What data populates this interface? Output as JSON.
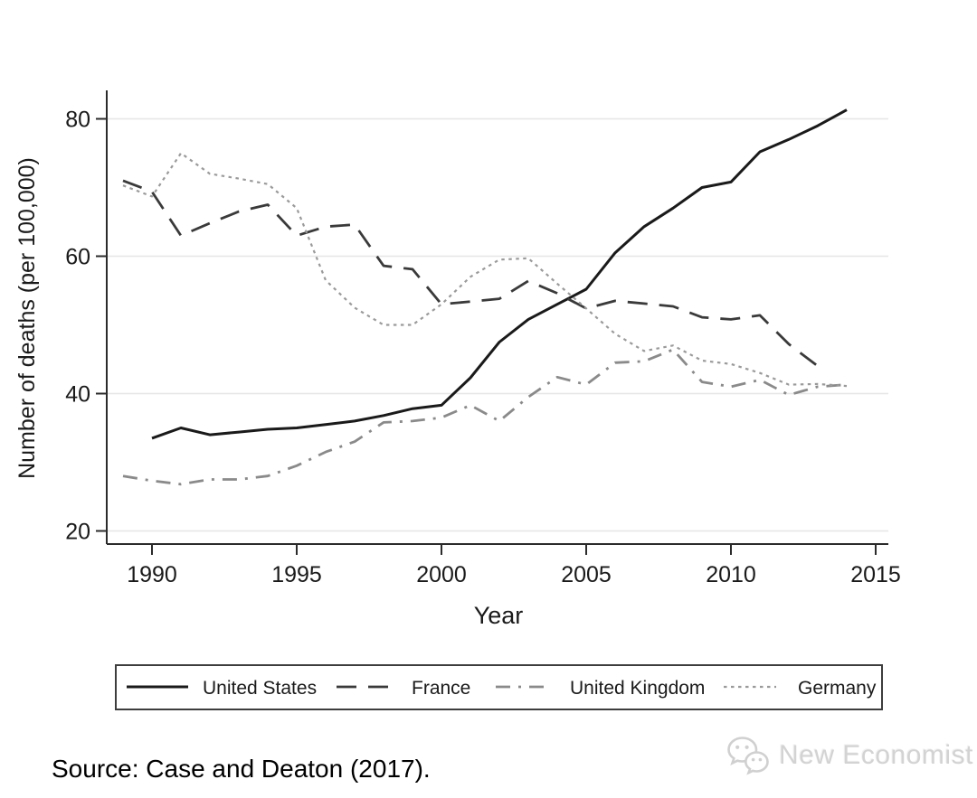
{
  "chart_data": {
    "type": "line",
    "title": "",
    "xlabel": "Year",
    "ylabel": "Number of deaths (per 100,000)",
    "x_ticks": [
      1990,
      1995,
      2000,
      2005,
      2010,
      2015
    ],
    "y_ticks": [
      20,
      40,
      60,
      80
    ],
    "xlim": [
      1988.4,
      2015.6
    ],
    "ylim": [
      18,
      84.5
    ],
    "grid": "horizontal-only",
    "legend_position": "bottom-boxed-row",
    "series": [
      {
        "name": "United States",
        "style": "solid",
        "color": "#1a1a1a",
        "width": 3,
        "dash": "",
        "x": [
          1990,
          1991,
          1992,
          1993,
          1994,
          1995,
          1996,
          1997,
          1998,
          1999,
          2000,
          2001,
          2002,
          2003,
          2004,
          2005,
          2006,
          2007,
          2008,
          2009,
          2010,
          2011,
          2012,
          2013,
          2014
        ],
        "values": [
          33.5,
          35,
          34,
          34.4,
          34.8,
          35,
          35.5,
          36,
          36.8,
          37.8,
          38.3,
          42.3,
          47.5,
          50.8,
          53,
          55.2,
          60.5,
          64.3,
          67,
          70,
          70.8,
          75.2,
          77,
          79,
          81.3
        ]
      },
      {
        "name": "France",
        "style": "long-dash",
        "color": "#3a3a3a",
        "width": 2.8,
        "dash": "22,13",
        "x": [
          1989,
          1990,
          1991,
          1992,
          1993,
          1994,
          1995,
          1996,
          1997,
          1998,
          1999,
          2000,
          2001,
          2002,
          2003,
          2004,
          2005,
          2006,
          2007,
          2008,
          2009,
          2010,
          2011,
          2012,
          2013
        ],
        "values": [
          71,
          69.4,
          63,
          64.8,
          66.5,
          67.5,
          63,
          64.3,
          64.6,
          58.6,
          58.1,
          53,
          53.4,
          53.8,
          56.4,
          54.6,
          52.4,
          53.5,
          53.1,
          52.7,
          51.1,
          50.8,
          51.4,
          47.2,
          44
        ]
      },
      {
        "name": "United Kingdom",
        "style": "dash-dot",
        "color": "#8a8a8a",
        "width": 2.8,
        "dash": "16,9,3,9",
        "x": [
          1989,
          1990,
          1991,
          1992,
          1993,
          1994,
          1995,
          1996,
          1997,
          1998,
          1999,
          2000,
          2001,
          2002,
          2003,
          2004,
          2005,
          2006,
          2007,
          2008,
          2009,
          2010,
          2011,
          2012,
          2013,
          2014
        ],
        "values": [
          28,
          27.3,
          26.8,
          27.5,
          27.5,
          28,
          29.5,
          31.5,
          33,
          35.8,
          36,
          36.5,
          38.3,
          36,
          39.5,
          42.4,
          41.3,
          44.5,
          44.7,
          46.4,
          41.7,
          41,
          42,
          39.8,
          41,
          41.3
        ]
      },
      {
        "name": "Germany",
        "style": "dotted",
        "color": "#9a9a9a",
        "width": 2.2,
        "dash": "3.5,4.5",
        "x": [
          1989,
          1990,
          1991,
          1992,
          1993,
          1994,
          1995,
          1996,
          1997,
          1998,
          1999,
          2000,
          2001,
          2002,
          2003,
          2004,
          2005,
          2006,
          2007,
          2008,
          2009,
          2010,
          2011,
          2012,
          2013,
          2014
        ],
        "values": [
          70.3,
          68.7,
          75,
          72,
          71.3,
          70.5,
          67,
          56.5,
          52.5,
          50,
          50,
          53,
          57,
          59.5,
          59.7,
          56,
          52.4,
          48.7,
          46.2,
          47,
          44.8,
          44.3,
          43,
          41.3,
          41.4,
          41.1
        ]
      }
    ],
    "colors": {
      "axis": "#2b2b2b",
      "gridline": "#e6e6e6",
      "tick_label": "#1a1a1a",
      "legend_border": "#3d3d3d"
    }
  },
  "source": {
    "text": "Source: Case and Deaton (2017)."
  },
  "watermark": {
    "text": "New Economist",
    "icon": "wechat-chat-bubbles-icon",
    "color": "#d3d3d3"
  }
}
